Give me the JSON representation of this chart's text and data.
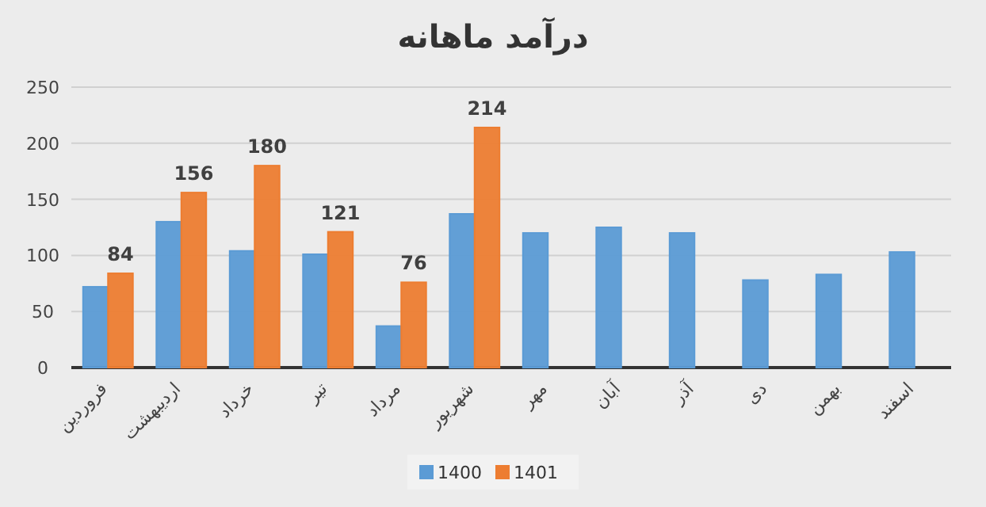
{
  "chart_data": {
    "type": "bar",
    "title": "درآمد ماهانه",
    "categories": [
      "فروردین",
      "اردیبهشت",
      "خرداد",
      "تیر",
      "مرداد",
      "شهریور",
      "مهر",
      "آبان",
      "آذر",
      "دی",
      "بهمن",
      "اسفند"
    ],
    "series": [
      {
        "name": "1400",
        "color": "#5b9bd5",
        "values": [
          72,
          130,
          104,
          101,
          37,
          137,
          120,
          125,
          120,
          78,
          83,
          103
        ]
      },
      {
        "name": "1401",
        "color": "#ed7d31",
        "values": [
          84,
          156,
          180,
          121,
          76,
          214,
          null,
          null,
          null,
          null,
          null,
          null
        ],
        "value_labels": [
          "84",
          "156",
          "180",
          "121",
          "76",
          "214",
          null,
          null,
          null,
          null,
          null,
          null
        ]
      }
    ],
    "ylim": [
      0,
      250
    ],
    "yticks": [
      0,
      50,
      100,
      150,
      200,
      250
    ],
    "grid": "y",
    "legend": "bottom"
  }
}
